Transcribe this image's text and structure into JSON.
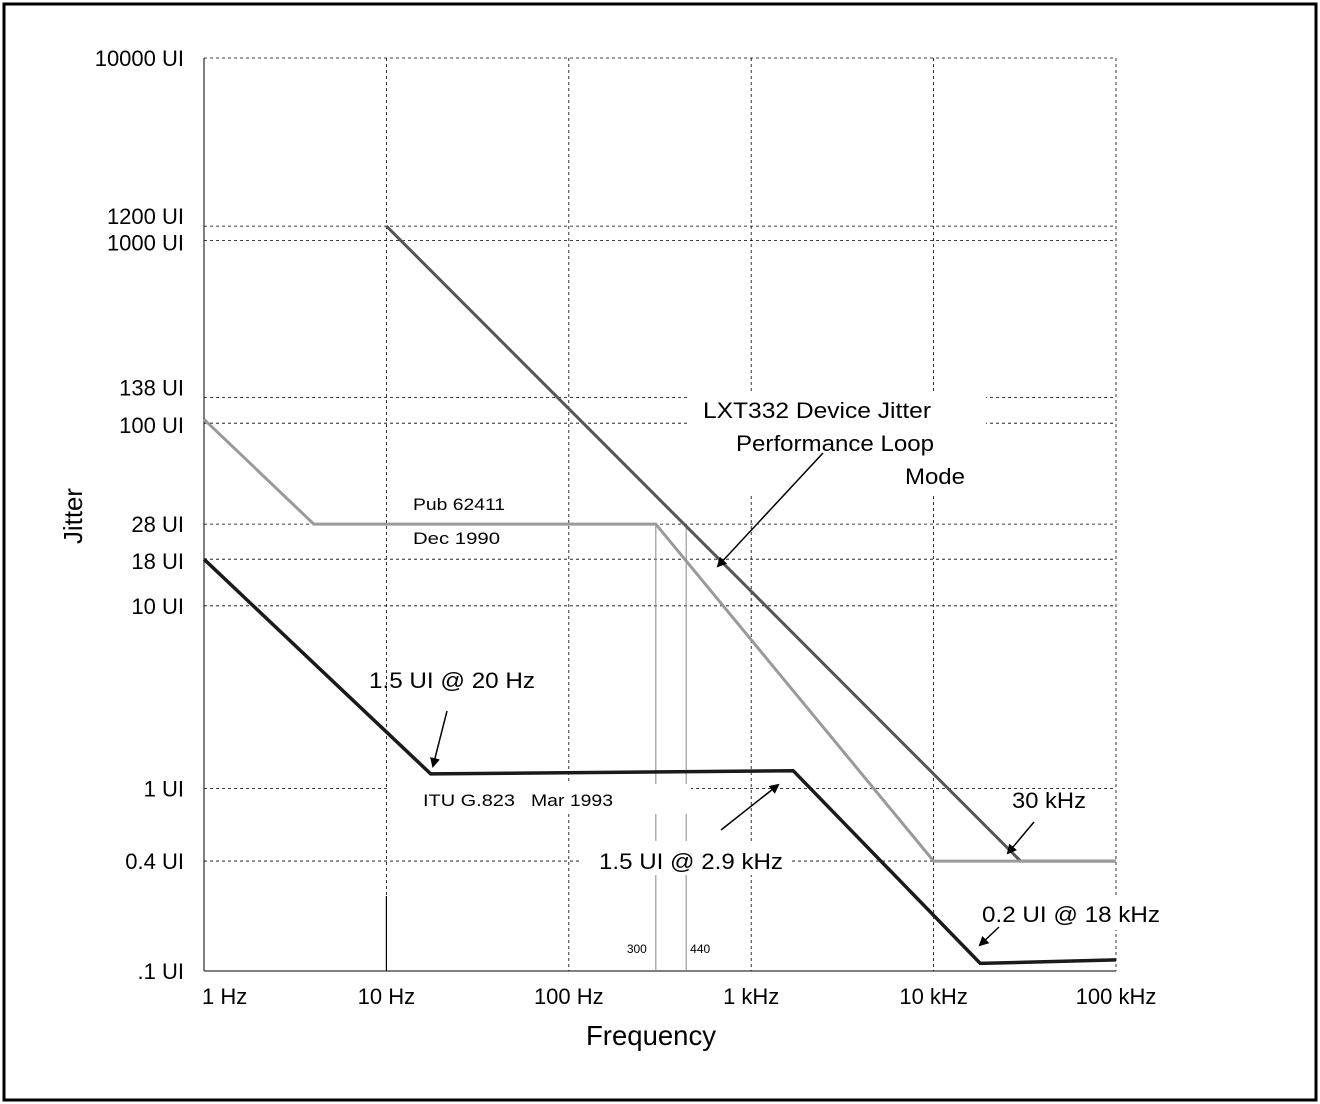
{
  "chart_data": {
    "type": "line",
    "xlabel": "Frequency",
    "ylabel": "Jitter",
    "xscale": "log",
    "yscale": "log",
    "xlim": [
      1,
      100000
    ],
    "ylim": [
      0.1,
      10000
    ],
    "grid": true,
    "x_ticks": [
      {
        "value": 1,
        "label": "1 Hz"
      },
      {
        "value": 10,
        "label": "10 Hz"
      },
      {
        "value": 100,
        "label": "100 Hz"
      },
      {
        "value": 1000,
        "label": "1 kHz"
      },
      {
        "value": 10000,
        "label": "10 kHz"
      },
      {
        "value": 100000,
        "label": "100 kHz"
      }
    ],
    "y_ticks": [
      {
        "value": 10000,
        "label": "10000 UI"
      },
      {
        "value": 1200,
        "label": "1200 UI"
      },
      {
        "value": 1000,
        "label": "1000 UI"
      },
      {
        "value": 138,
        "label": "138 UI"
      },
      {
        "value": 100,
        "label": "100 UI"
      },
      {
        "value": 28,
        "label": "28 UI"
      },
      {
        "value": 18,
        "label": "18 UI"
      },
      {
        "value": 10,
        "label": "10 UI"
      },
      {
        "value": 1,
        "label": "1 UI"
      },
      {
        "value": 0.4,
        "label": "0.4 UI"
      },
      {
        "value": 0.1,
        "label": ".1 UI"
      }
    ],
    "series": [
      {
        "color": "#555555",
        "width": 3,
        "points": [
          [
            10,
            1200
          ],
          [
            30000,
            0.4
          ],
          [
            100000,
            0.4
          ]
        ]
      },
      {
        "color": "#9a9a9a",
        "width": 3,
        "points": [
          [
            1,
            105
          ],
          [
            4,
            28
          ],
          [
            300,
            28
          ],
          [
            10000,
            0.4
          ],
          [
            100000,
            0.4
          ]
        ]
      },
      {
        "color": "#1a1a1a",
        "width": 3.5,
        "points": [
          [
            1,
            18
          ],
          [
            17.5,
            1.2
          ],
          [
            1700,
            1.25
          ],
          [
            18000,
            0.11
          ],
          [
            100000,
            0.115
          ]
        ]
      }
    ],
    "marker_lines": [
      {
        "x": 300,
        "label": "300"
      },
      {
        "x": 440,
        "label": "440"
      }
    ],
    "annotations": [
      {
        "text": "LXT332 Device Jitter"
      },
      {
        "text": "Performance Loop"
      },
      {
        "text": "Mode"
      },
      {
        "text": "Pub 62411"
      },
      {
        "text": "Dec 1990"
      },
      {
        "text": "1.5 UI @ 20 Hz"
      },
      {
        "text": "ITU G.823"
      },
      {
        "text": "Mar 1993"
      },
      {
        "text": "1.5 UI @ 2.9 kHz"
      },
      {
        "text": "30 kHz"
      },
      {
        "text": "0.2 UI @ 18 kHz"
      }
    ]
  }
}
